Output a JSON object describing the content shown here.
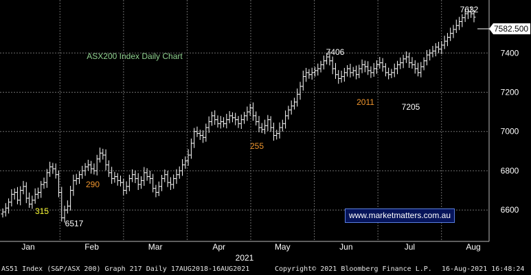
{
  "chart_data": {
    "type": "ohlc",
    "title": "ASX200 Index Daily Chart",
    "year_label": "2021",
    "xlabel": "",
    "ylabel": "",
    "x_tick_labels": [
      "Jan",
      "Feb",
      "Mar",
      "Apr",
      "May",
      "Jun",
      "Jul",
      "Aug"
    ],
    "y_tick_labels": [
      6600,
      6800,
      7000,
      7200,
      7400
    ],
    "ylim": [
      6440,
      7670
    ],
    "grid": true,
    "last_price": "7582.500",
    "annotations": [
      {
        "text": "7632",
        "color": "#ffffff"
      },
      {
        "text": "7406",
        "color": "#ffffff"
      },
      {
        "text": "2011",
        "color": "#f0962e"
      },
      {
        "text": "7205",
        "color": "#ffffff"
      },
      {
        "text": "255",
        "color": "#f0962e"
      },
      {
        "text": "290",
        "color": "#f0962e"
      },
      {
        "text": "315",
        "color": "#ffff33"
      },
      {
        "text": "6517",
        "color": "#ffffff"
      }
    ],
    "series": [
      {
        "values": [
          6590,
          6610,
          6640,
          6680,
          6690,
          6650,
          6700,
          6720,
          6660,
          6630,
          6650,
          6680,
          6690,
          6730,
          6740,
          6790,
          6820,
          6810,
          6780,
          6690,
          6560,
          6600,
          6620,
          6700,
          6750,
          6760,
          6780,
          6800,
          6820,
          6830,
          6810,
          6800,
          6860,
          6890,
          6880,
          6830,
          6790,
          6760,
          6770,
          6750,
          6740,
          6700,
          6720,
          6760,
          6780,
          6760,
          6730,
          6750,
          6790,
          6770,
          6760,
          6710,
          6690,
          6720,
          6760,
          6780,
          6740,
          6730,
          6760,
          6780,
          6800,
          6830,
          6850,
          6880,
          6940,
          7000,
          6990,
          6980,
          6970,
          7020,
          7050,
          7080,
          7060,
          7040,
          7050,
          7040,
          7060,
          7080,
          7070,
          7060,
          7040,
          7060,
          7080,
          7100,
          7120,
          7080,
          7050,
          7020,
          7010,
          7030,
          7060,
          7020,
          6980,
          6990,
          7020,
          7040,
          7080,
          7110,
          7130,
          7150,
          7190,
          7230,
          7280,
          7300,
          7290,
          7300,
          7310,
          7320,
          7340,
          7360,
          7380,
          7360,
          7320,
          7290,
          7270,
          7280,
          7300,
          7320,
          7300,
          7310,
          7290,
          7320,
          7340,
          7330,
          7310,
          7300,
          7320,
          7340,
          7350,
          7330,
          7300,
          7290,
          7300,
          7320,
          7340,
          7350,
          7370,
          7380,
          7350,
          7340,
          7320,
          7300,
          7330,
          7360,
          7390,
          7400,
          7410,
          7430,
          7420,
          7440,
          7460,
          7480,
          7500,
          7520,
          7540,
          7560,
          7580,
          7600,
          7610,
          7600,
          7582.5
        ]
      }
    ]
  },
  "branding": {
    "watermark": "www.marketmatters.com.au"
  },
  "footer": {
    "left": "AS51 Index (S&P/ASX 200) Graph 217  Daily 17AUG2018-16AUG2021",
    "center": "Copyright© 2021 Bloomberg Finance L.P.",
    "right": "16-Aug-2021 16:48:24"
  },
  "colors": {
    "background": "#000000",
    "grid": "#6e6e6e",
    "bars": "#ffffff",
    "axis_text": "#ffffff",
    "title": "#8fd18f",
    "price_box_bg": "#ffffff",
    "price_box_text": "#000000"
  }
}
